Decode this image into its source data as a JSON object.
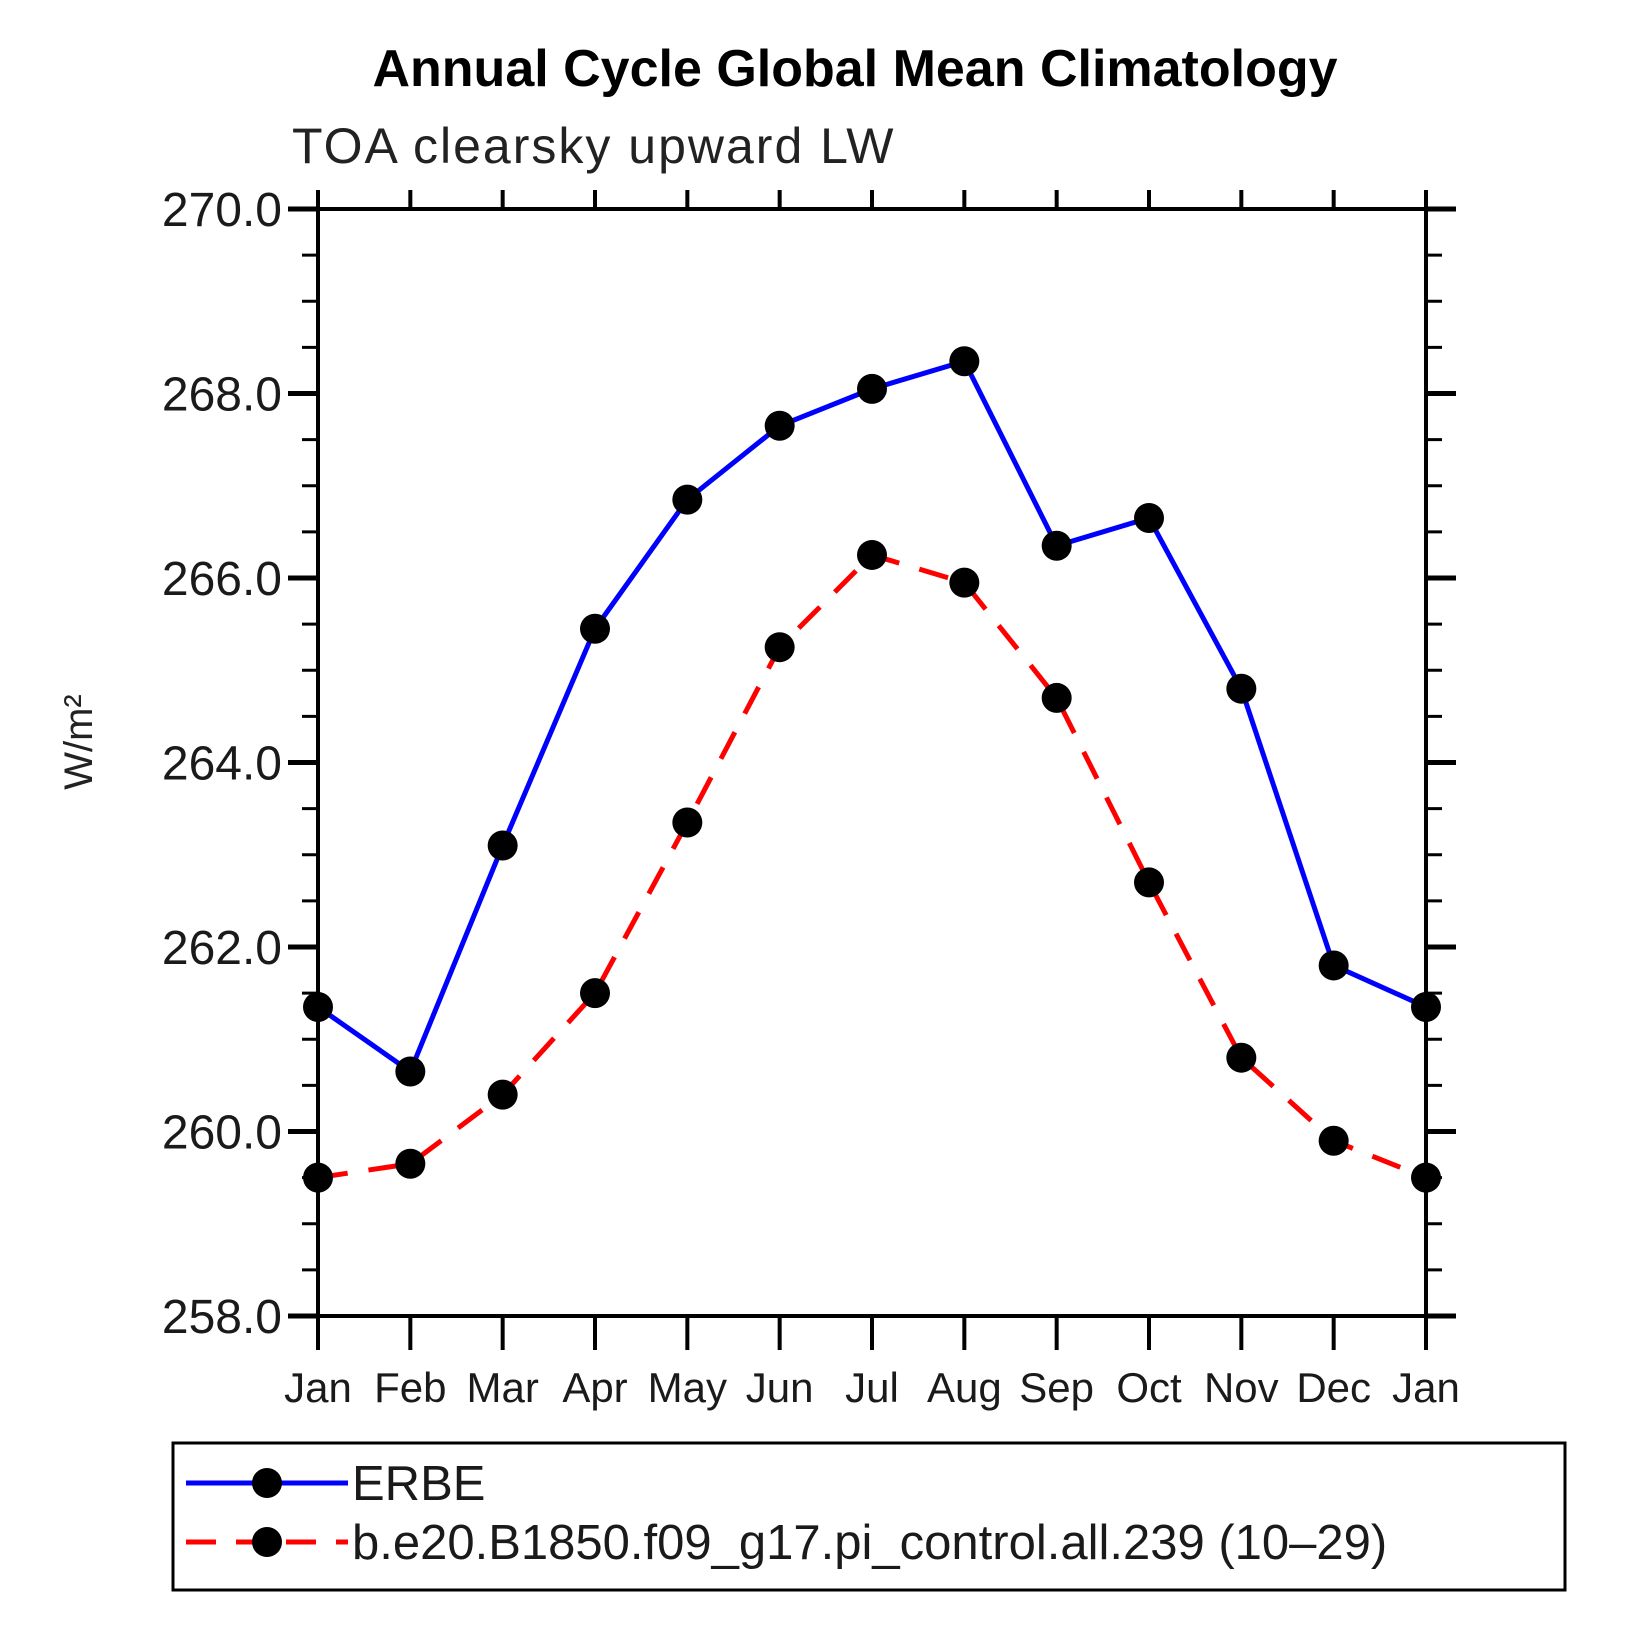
{
  "page": {
    "background": "#ffffff"
  },
  "chart_data": {
    "type": "line",
    "title": "Annual Cycle Global Mean Climatology",
    "subtitle": "TOA clearsky upward LW",
    "ylabel": "W/m²",
    "xlabel": "",
    "categories": [
      "Jan",
      "Feb",
      "Mar",
      "Apr",
      "May",
      "Jun",
      "Jul",
      "Aug",
      "Sep",
      "Oct",
      "Nov",
      "Dec",
      "Jan"
    ],
    "ylim": [
      258.0,
      270.0
    ],
    "y_major_step": 2.0,
    "y_minor_step": 0.5,
    "y_tick_labels": [
      "258.0",
      "260.0",
      "262.0",
      "264.0",
      "266.0",
      "268.0",
      "270.0"
    ],
    "grid": false,
    "legend_position": "bottom-left",
    "frame": "box-with-outward-ticks",
    "marker_color": "#000000",
    "series": [
      {
        "name": "ERBE",
        "color": "#0000ff",
        "line_style": "solid",
        "marker": "filled-circle",
        "values": [
          261.35,
          260.65,
          263.1,
          265.45,
          266.85,
          267.65,
          268.05,
          268.35,
          266.35,
          266.65,
          264.8,
          261.8,
          261.35
        ]
      },
      {
        "name": "b.e20.B1850.f09_g17.pi_control.all.239 (10–29)",
        "color": "#ff0000",
        "line_style": "dashed",
        "marker": "filled-circle",
        "values": [
          259.5,
          259.65,
          260.4,
          261.5,
          263.35,
          265.25,
          266.25,
          265.95,
          264.7,
          262.7,
          260.8,
          259.9,
          259.5
        ]
      }
    ]
  }
}
